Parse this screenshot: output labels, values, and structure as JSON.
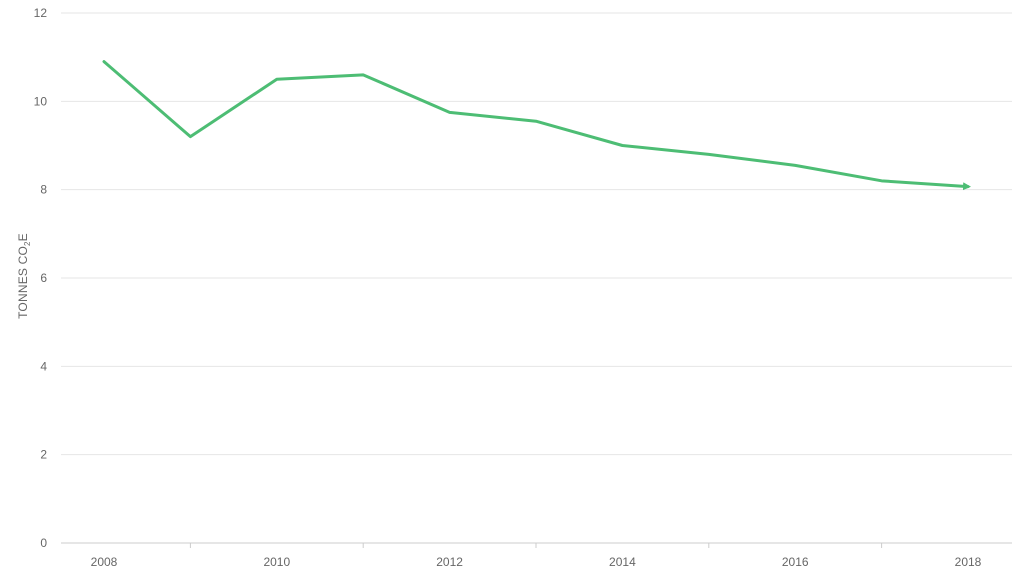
{
  "chart_data": {
    "type": "line",
    "title": "",
    "xlabel": "",
    "ylabel": "TONNES CO",
    "ylabel_subscript": "2",
    "ylabel_suffix": "E",
    "xlim": [
      2008,
      2018
    ],
    "ylim": [
      0,
      12
    ],
    "x_ticks": [
      2008,
      2010,
      2012,
      2014,
      2016,
      2018
    ],
    "y_ticks": [
      0,
      2,
      4,
      6,
      8,
      10,
      12
    ],
    "grid": true,
    "series": [
      {
        "color": "#4dbd74",
        "end_marker": "arrow",
        "x": [
          2008,
          2009,
          2010,
          2011,
          2012,
          2013,
          2014,
          2015,
          2016,
          2017,
          2018
        ],
        "values": [
          10.9,
          9.2,
          10.5,
          10.6,
          9.75,
          9.55,
          9.0,
          8.8,
          8.55,
          8.2,
          8.07
        ]
      }
    ]
  }
}
